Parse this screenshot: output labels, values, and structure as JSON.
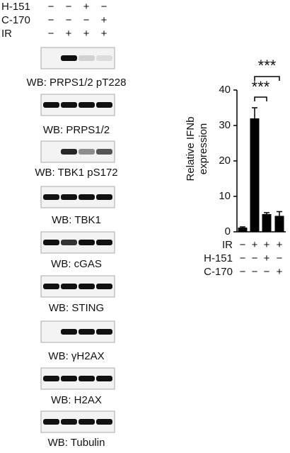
{
  "treatments": [
    {
      "name": "H-151",
      "marks": [
        "−",
        "−",
        "+",
        "−"
      ]
    },
    {
      "name": "C-170",
      "marks": [
        "−",
        "−",
        "−",
        "+"
      ]
    },
    {
      "name": "IR",
      "marks": [
        "−",
        "+",
        "+",
        "+"
      ]
    }
  ],
  "blots": [
    "WB: PRPS1/2 pT228",
    "WB: PRPS1/2",
    "WB: TBK1 pS172",
    "WB: TBK1",
    "WB: cGAS",
    "WB: STING",
    "WB: γH2AX",
    "WB: H2AX",
    "WB: Tubulin"
  ],
  "chart_data": {
    "type": "bar",
    "y_label": [
      "Relative IFNb",
      "expression"
    ],
    "values": [
      1.2,
      32,
      5,
      4.5
    ],
    "errors": [
      0.2,
      3,
      0.4,
      1.2
    ],
    "color": "#000000",
    "ylim": [
      0,
      40
    ],
    "yticks": [
      0,
      10,
      20,
      30,
      40
    ],
    "annotations": [
      "***",
      "***"
    ],
    "conditions": [
      {
        "name": "IR",
        "marks": [
          "−",
          "+",
          "+",
          "+"
        ]
      },
      {
        "name": "H-151",
        "marks": [
          "−",
          "−",
          "+",
          "−"
        ]
      },
      {
        "name": "C-170",
        "marks": [
          "−",
          "−",
          "−",
          "+"
        ]
      }
    ]
  }
}
